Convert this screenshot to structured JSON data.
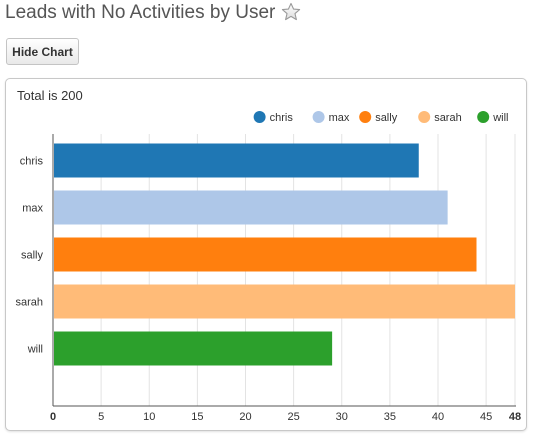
{
  "header": {
    "title": "Leads with No Activities by User",
    "favorite_icon": "star-outline-icon"
  },
  "toolbar": {
    "hide_chart_label": "Hide Chart"
  },
  "chart_panel": {
    "total_label": "Total is 200"
  },
  "chart_data": {
    "type": "bar",
    "orientation": "horizontal",
    "categories": [
      "chris",
      "max",
      "sally",
      "sarah",
      "will"
    ],
    "values": [
      38,
      41,
      44,
      48,
      29
    ],
    "colors": [
      "#1f77b4",
      "#aec7e8",
      "#ff7f0e",
      "#ffbb78",
      "#2ca02c"
    ],
    "legend": [
      "chris",
      "max",
      "sally",
      "sarah",
      "will"
    ],
    "legend_position": "top-right",
    "xlim": [
      0,
      48
    ],
    "xticks": [
      0,
      5,
      10,
      15,
      20,
      25,
      30,
      35,
      40,
      45,
      48
    ],
    "bold_ticks": [
      0,
      48
    ],
    "grid": true,
    "title": "",
    "xlabel": "",
    "ylabel": ""
  }
}
